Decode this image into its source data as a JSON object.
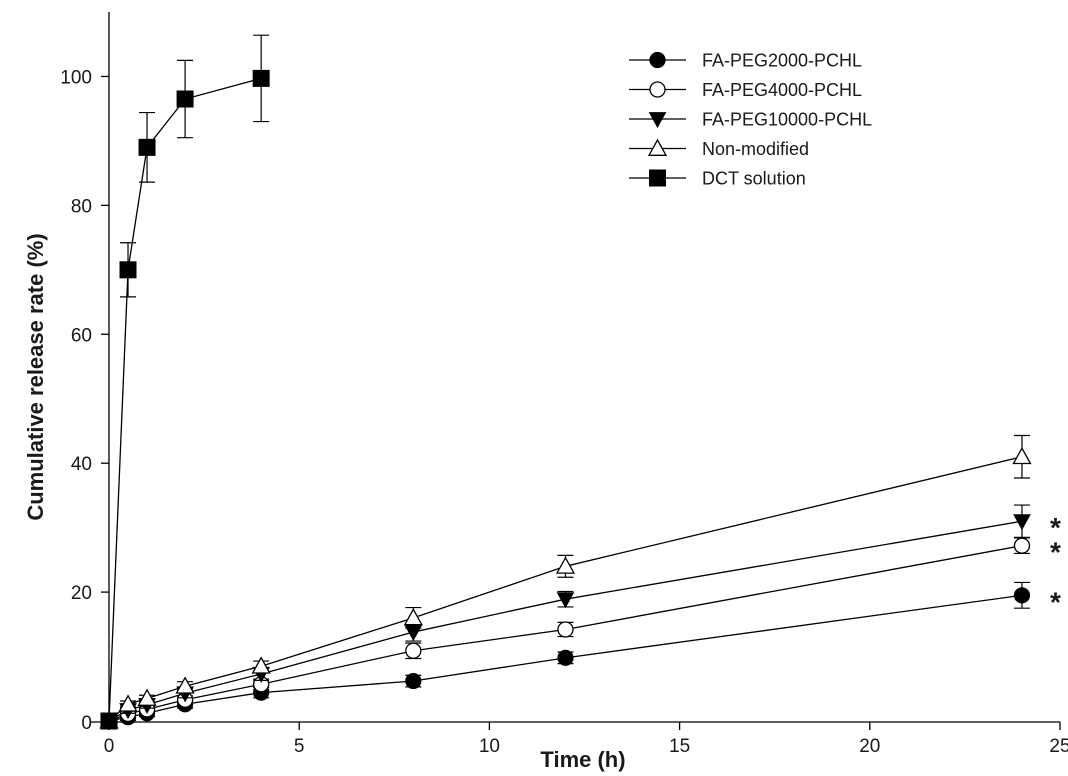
{
  "chart_data": {
    "type": "line",
    "xlabel": "Time (h)",
    "ylabel": "Cumulative release rate (%)",
    "xlim": [
      0,
      25
    ],
    "ylim": [
      0,
      110
    ],
    "xticks": [
      0,
      5,
      10,
      15,
      20,
      25
    ],
    "yticks": [
      0,
      20,
      40,
      60,
      80,
      100
    ],
    "grid": false,
    "legend_position": "top-right",
    "series": [
      {
        "name": "FA-PEG2000-PCHL",
        "marker": "filled-circle",
        "x": [
          0,
          0.5,
          1,
          2,
          4,
          8,
          12,
          24
        ],
        "y": [
          0,
          0.6,
          1.2,
          2.6,
          4.4,
          6.2,
          9.8,
          19.5
        ],
        "err": [
          0,
          0.5,
          0.5,
          0.6,
          0.8,
          0.9,
          0.9,
          2.0
        ],
        "significance": "*"
      },
      {
        "name": "FA-PEG4000-PCHL",
        "marker": "open-circle",
        "x": [
          0,
          0.5,
          1,
          2,
          4,
          8,
          12,
          24
        ],
        "y": [
          0,
          1.1,
          1.8,
          3.3,
          5.7,
          10.9,
          14.2,
          27.2
        ],
        "err": [
          0,
          0.5,
          0.5,
          0.6,
          0.8,
          1.2,
          1.1,
          1.2
        ],
        "significance": "*"
      },
      {
        "name": "FA-PEG10000-PCHL",
        "marker": "filled-triangle-down",
        "x": [
          0,
          0.5,
          1,
          2,
          4,
          8,
          12,
          24
        ],
        "y": [
          0,
          1.7,
          2.5,
          4.3,
          7.3,
          13.8,
          18.9,
          31.0
        ],
        "err": [
          0,
          0.5,
          0.5,
          0.7,
          1.0,
          1.4,
          1.2,
          2.5
        ],
        "significance": "*"
      },
      {
        "name": "Non-modified",
        "marker": "open-triangle-up",
        "x": [
          0,
          0.5,
          1,
          2,
          4,
          8,
          12,
          24
        ],
        "y": [
          0,
          2.6,
          3.5,
          5.4,
          8.5,
          16.0,
          24.0,
          41.0
        ],
        "err": [
          0,
          0.5,
          0.5,
          0.7,
          0.8,
          1.6,
          1.7,
          3.3
        ]
      },
      {
        "name": "DCT solution",
        "marker": "filled-square",
        "x": [
          0,
          0.5,
          1,
          2,
          4
        ],
        "y": [
          0,
          70.0,
          89.0,
          96.5,
          99.7
        ],
        "err": [
          0,
          4.2,
          5.4,
          6.0,
          6.7
        ]
      }
    ]
  }
}
